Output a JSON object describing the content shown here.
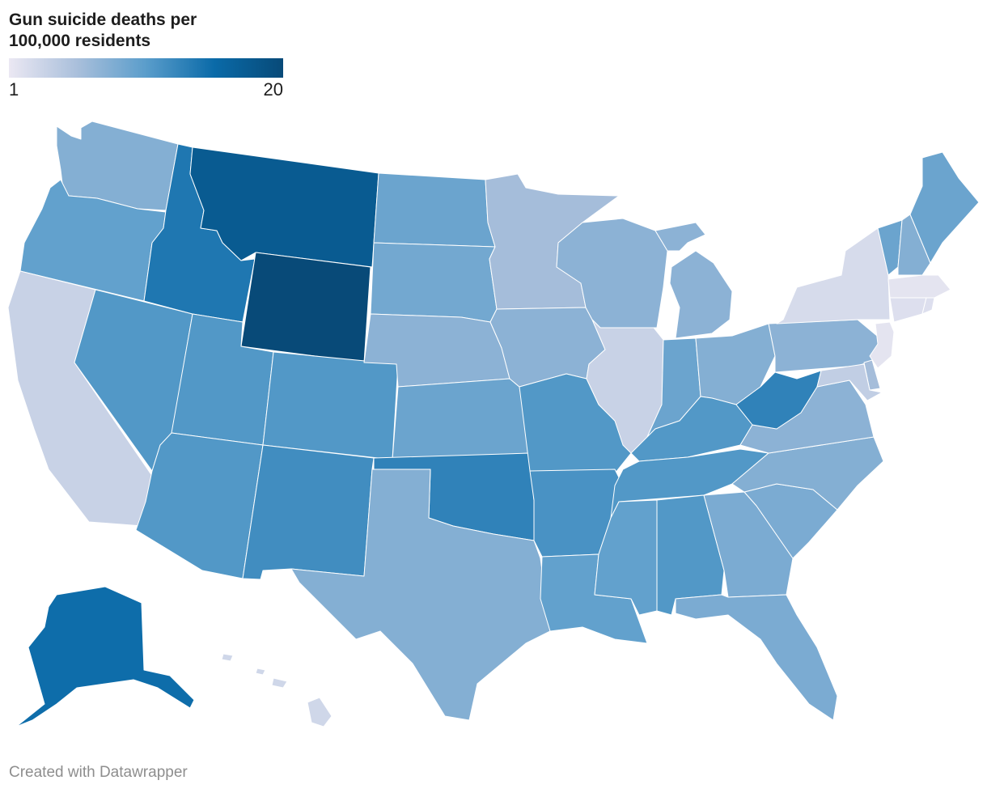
{
  "title": "Gun suicide deaths per 100,000 residents",
  "legend": {
    "min_label": "1",
    "max_label": "20",
    "min": 1,
    "max": 20,
    "colors": [
      "#ebe8f3",
      "#a9bfdb",
      "#5a9dcb",
      "#0a6aa8",
      "#084a78"
    ]
  },
  "credit": "Created with Datawrapper",
  "states": [
    {
      "name": "Washington",
      "value": 8
    },
    {
      "name": "Oregon",
      "value": 10
    },
    {
      "name": "California",
      "value": 3.5
    },
    {
      "name": "Idaho",
      "value": 14
    },
    {
      "name": "Nevada",
      "value": 11
    },
    {
      "name": "Montana",
      "value": 17.5
    },
    {
      "name": "Wyoming",
      "value": 20
    },
    {
      "name": "Utah",
      "value": 11
    },
    {
      "name": "Arizona",
      "value": 11
    },
    {
      "name": "Colorado",
      "value": 11
    },
    {
      "name": "New Mexico",
      "value": 12
    },
    {
      "name": "North Dakota",
      "value": 9.5
    },
    {
      "name": "South Dakota",
      "value": 9
    },
    {
      "name": "Nebraska",
      "value": 7.5
    },
    {
      "name": "Kansas",
      "value": 9.5
    },
    {
      "name": "Oklahoma",
      "value": 13
    },
    {
      "name": "Texas",
      "value": 8
    },
    {
      "name": "Minnesota",
      "value": 6
    },
    {
      "name": "Iowa",
      "value": 7.5
    },
    {
      "name": "Missouri",
      "value": 11
    },
    {
      "name": "Arkansas",
      "value": 11.5
    },
    {
      "name": "Louisiana",
      "value": 10
    },
    {
      "name": "Wisconsin",
      "value": 7.5
    },
    {
      "name": "Illinois",
      "value": 3.5
    },
    {
      "name": "Michigan",
      "value": 7.5
    },
    {
      "name": "Indiana",
      "value": 9.5
    },
    {
      "name": "Ohio",
      "value": 8
    },
    {
      "name": "Kentucky",
      "value": 11
    },
    {
      "name": "Tennessee",
      "value": 11
    },
    {
      "name": "Mississippi",
      "value": 10
    },
    {
      "name": "Alabama",
      "value": 11
    },
    {
      "name": "Georgia",
      "value": 8.5
    },
    {
      "name": "Florida",
      "value": 8.5
    },
    {
      "name": "South Carolina",
      "value": 8.5
    },
    {
      "name": "North Carolina",
      "value": 8
    },
    {
      "name": "Virginia",
      "value": 7.5
    },
    {
      "name": "West Virginia",
      "value": 13
    },
    {
      "name": "Pennsylvania",
      "value": 7.5
    },
    {
      "name": "New York",
      "value": 2.5
    },
    {
      "name": "Vermont",
      "value": 9.5
    },
    {
      "name": "New Hampshire",
      "value": 8
    },
    {
      "name": "Maine",
      "value": 9.5
    },
    {
      "name": "Massachusetts",
      "value": 1.5
    },
    {
      "name": "Rhode Island",
      "value": 2
    },
    {
      "name": "Connecticut",
      "value": 2
    },
    {
      "name": "New Jersey",
      "value": 1.5
    },
    {
      "name": "Delaware",
      "value": 6
    },
    {
      "name": "Maryland",
      "value": 4
    },
    {
      "name": "Alaska",
      "value": 15
    },
    {
      "name": "Hawaii",
      "value": 3
    }
  ]
}
